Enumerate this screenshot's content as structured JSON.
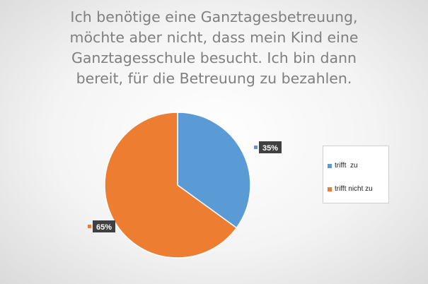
{
  "chart_data": {
    "type": "pie",
    "title_lines": [
      "Ich benötige eine Ganztagesbetreuung,",
      "möchte aber nicht, dass mein Kind eine",
      "Ganztagesschule besucht. Ich bin dann",
      "bereit, für die Betreuung zu bezahlen."
    ],
    "categories": [
      "trifft  zu",
      "trifft nicht zu"
    ],
    "values": [
      35,
      65
    ],
    "data_labels": [
      "35%",
      "65%"
    ],
    "colors": [
      "#5b9bd5",
      "#ed7d31"
    ],
    "legend_position": "right"
  }
}
